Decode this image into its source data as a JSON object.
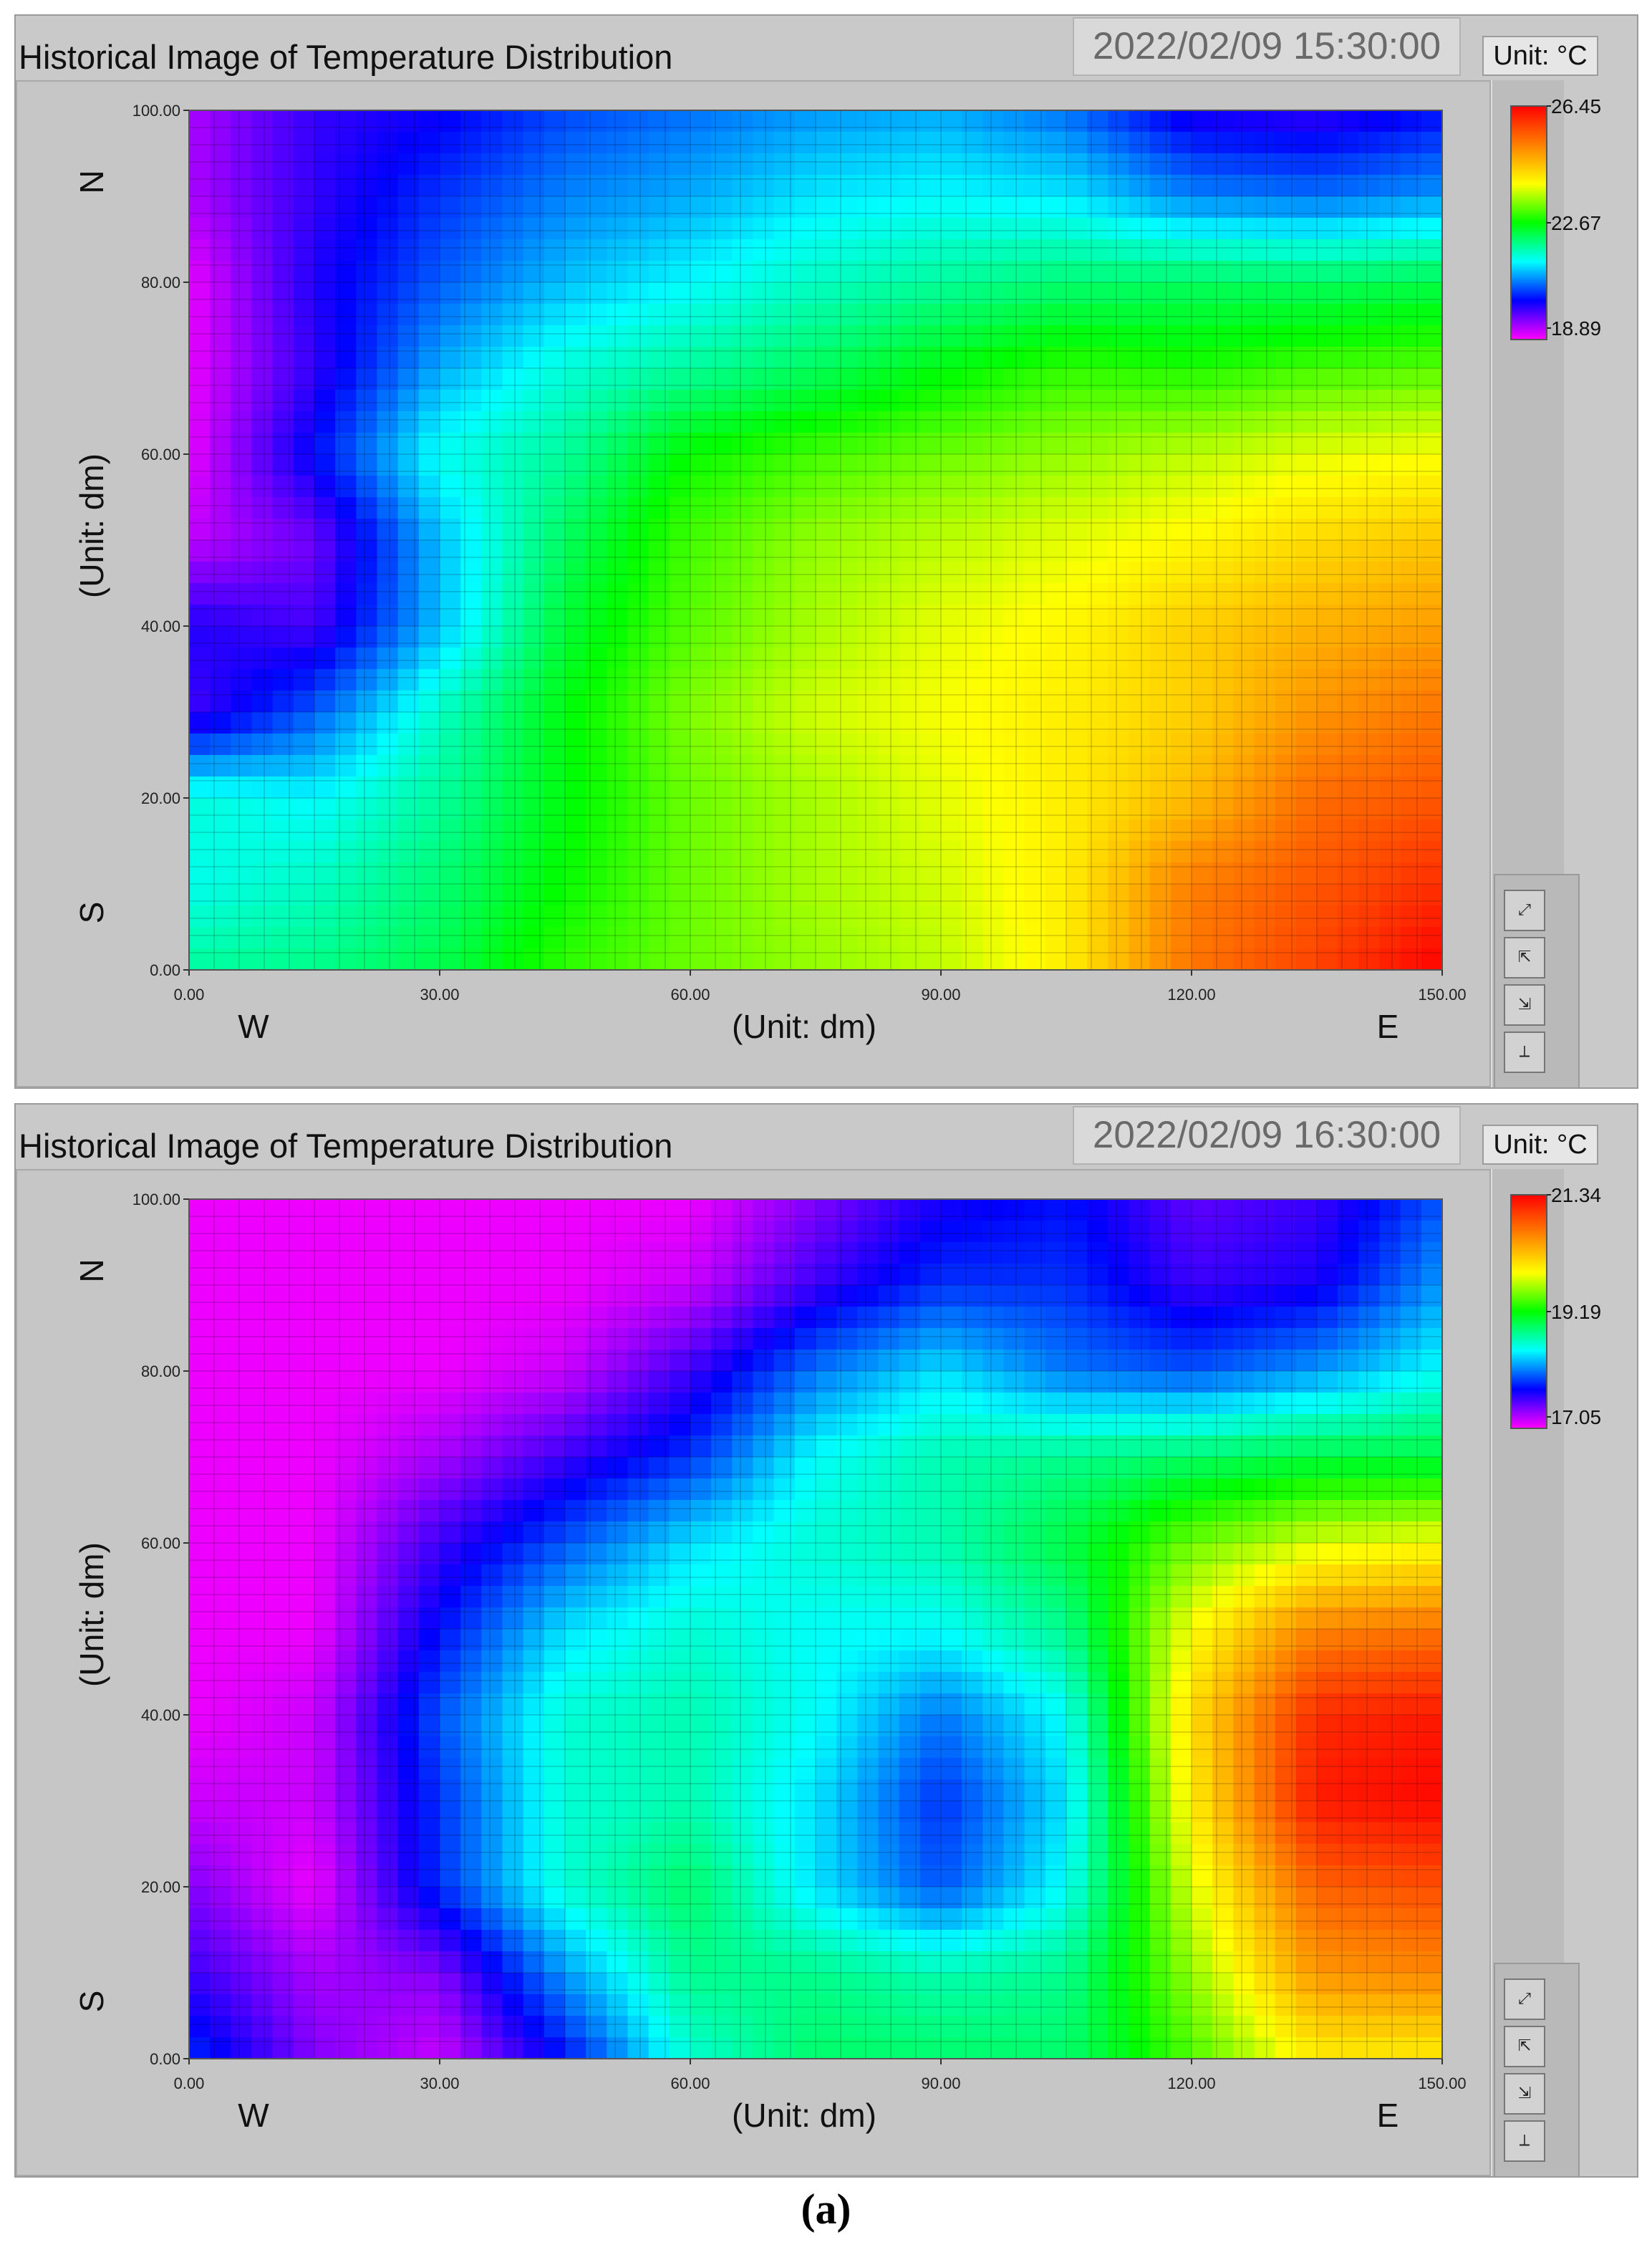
{
  "figure_label": "(a)",
  "panels": [
    {
      "title": "Historical Image of Temperature Distribution",
      "timestamp": "2022/02/09 15:30:00",
      "unit_label": "Unit: °C",
      "scale_labels": [
        "26.45",
        "22.67",
        "18.89"
      ],
      "x_ticks": [
        "0.00",
        "30.00",
        "60.00",
        "90.00",
        "120.00",
        "150.00"
      ],
      "y_ticks": [
        "0.00",
        "20.00",
        "40.00",
        "60.00",
        "80.00",
        "100.00"
      ],
      "xlabel": "(Unit: dm)",
      "ylabel": "(Unit: dm)",
      "dir_w": "W",
      "dir_e": "E",
      "dir_n": "N",
      "dir_s": "S"
    },
    {
      "title": "Historical Image of Temperature Distribution",
      "timestamp": "2022/02/09 16:30:00",
      "unit_label": "Unit: °C",
      "scale_labels": [
        "21.34",
        "19.19",
        "17.05"
      ],
      "x_ticks": [
        "0.00",
        "30.00",
        "60.00",
        "90.00",
        "120.00",
        "150.00"
      ],
      "y_ticks": [
        "0.00",
        "20.00",
        "40.00",
        "60.00",
        "80.00",
        "100.00"
      ],
      "xlabel": "(Unit: dm)",
      "ylabel": "(Unit: dm)",
      "dir_w": "W",
      "dir_e": "E",
      "dir_n": "N",
      "dir_s": "S"
    }
  ],
  "tool_icons": [
    "zoom-xy-icon",
    "axis-xz-icon",
    "axis-zy-icon",
    "axis-3d-icon"
  ],
  "chart_data": [
    {
      "type": "heatmap",
      "title": "Historical Image of Temperature Distribution",
      "timestamp": "2022/02/09 15:30:00",
      "xlabel": "(Unit: dm)",
      "ylabel": "(Unit: dm)",
      "xlim": [
        0,
        150
      ],
      "ylim": [
        0,
        100
      ],
      "colorbar": {
        "min": 18.89,
        "mid": 22.67,
        "max": 26.45,
        "unit": "°C",
        "colors": [
          "#ff00ff",
          "#0000ff",
          "#00ffff",
          "#00ff00",
          "#ffff00",
          "#ff8000",
          "#ff0000"
        ]
      },
      "grid": true,
      "x": [
        0,
        15,
        30,
        45,
        60,
        75,
        90,
        105,
        120,
        135,
        150
      ],
      "y": [
        0,
        10,
        20,
        30,
        40,
        50,
        60,
        70,
        80,
        90,
        100
      ],
      "z": [
        [
          21.9,
          22.0,
          22.3,
          22.9,
          23.2,
          23.4,
          23.6,
          24.1,
          25.3,
          25.8,
          26.45
        ],
        [
          21.5,
          21.7,
          22.1,
          22.7,
          23.2,
          23.5,
          23.7,
          24.1,
          25.2,
          25.6,
          26.0
        ],
        [
          21.6,
          21.4,
          21.9,
          22.6,
          23.2,
          23.5,
          23.8,
          24.1,
          24.6,
          25.4,
          25.6
        ],
        [
          19.8,
          20.6,
          21.7,
          22.6,
          23.3,
          23.7,
          23.9,
          24.1,
          24.4,
          25.0,
          25.3
        ],
        [
          20.0,
          19.8,
          21.1,
          22.4,
          23.1,
          23.5,
          23.8,
          24.0,
          24.4,
          24.7,
          24.9
        ],
        [
          19.2,
          19.6,
          21.1,
          22.2,
          23.0,
          23.4,
          23.6,
          23.8,
          24.0,
          24.3,
          24.5
        ],
        [
          19.0,
          20.2,
          21.5,
          21.9,
          22.7,
          23.0,
          23.2,
          23.4,
          23.6,
          23.8,
          23.9
        ],
        [
          19.0,
          19.9,
          21.0,
          21.6,
          21.9,
          22.2,
          22.6,
          22.9,
          22.8,
          23.0,
          23.1
        ],
        [
          19.0,
          20.0,
          20.6,
          21.1,
          21.4,
          21.7,
          21.9,
          22.1,
          22.2,
          22.2,
          22.3
        ],
        [
          19.3,
          19.9,
          20.4,
          20.8,
          21.0,
          21.3,
          21.4,
          21.3,
          20.8,
          20.7,
          20.9
        ],
        [
          19.3,
          19.9,
          20.1,
          20.5,
          20.7,
          20.9,
          21.0,
          20.7,
          20.0,
          19.9,
          20.2
        ]
      ]
    },
    {
      "type": "heatmap",
      "title": "Historical Image of Temperature Distribution",
      "timestamp": "2022/02/09 16:30:00",
      "xlabel": "(Unit: dm)",
      "ylabel": "(Unit: dm)",
      "xlim": [
        0,
        150
      ],
      "ylim": [
        0,
        100
      ],
      "colorbar": {
        "min": 17.05,
        "mid": 19.19,
        "max": 21.34,
        "unit": "°C",
        "colors": [
          "#ff00ff",
          "#0000ff",
          "#00ffff",
          "#00ff00",
          "#ffff00",
          "#ff8000",
          "#ff0000"
        ]
      },
      "grid": true,
      "x": [
        0,
        15,
        30,
        45,
        60,
        75,
        90,
        105,
        120,
        135,
        150
      ],
      "y": [
        0,
        10,
        20,
        30,
        40,
        50,
        60,
        70,
        80,
        90,
        100
      ],
      "z": [
        [
          17.9,
          17.4,
          17.2,
          17.8,
          18.6,
          18.9,
          18.9,
          18.9,
          19.4,
          20.0,
          20.0
        ],
        [
          17.6,
          17.3,
          17.4,
          18.2,
          18.8,
          18.8,
          18.7,
          18.8,
          19.6,
          20.5,
          20.6
        ],
        [
          17.4,
          17.1,
          17.9,
          18.6,
          18.9,
          18.4,
          18.0,
          18.5,
          19.8,
          20.8,
          20.9
        ],
        [
          17.2,
          17.2,
          17.9,
          18.6,
          18.7,
          18.4,
          17.9,
          18.4,
          20.0,
          21.2,
          21.3
        ],
        [
          17.1,
          17.2,
          18.0,
          18.6,
          18.7,
          18.5,
          18.1,
          18.5,
          20.1,
          21.1,
          21.2
        ],
        [
          17.1,
          17.1,
          17.8,
          18.4,
          18.6,
          18.5,
          18.5,
          18.8,
          19.9,
          20.6,
          20.7
        ],
        [
          17.1,
          17.1,
          17.6,
          18.0,
          18.4,
          18.6,
          18.7,
          19.0,
          19.5,
          19.8,
          19.9
        ],
        [
          17.1,
          17.1,
          17.3,
          17.6,
          17.9,
          18.5,
          18.7,
          18.8,
          18.9,
          19.0,
          19.0
        ],
        [
          17.1,
          17.1,
          17.1,
          17.2,
          17.6,
          18.1,
          18.4,
          18.1,
          18.0,
          18.2,
          18.5
        ],
        [
          17.1,
          17.1,
          17.1,
          17.1,
          17.2,
          17.6,
          17.9,
          17.9,
          17.6,
          17.7,
          18.2
        ],
        [
          17.1,
          17.1,
          17.1,
          17.1,
          17.1,
          17.4,
          17.7,
          17.8,
          17.5,
          17.6,
          18.0
        ]
      ]
    }
  ]
}
